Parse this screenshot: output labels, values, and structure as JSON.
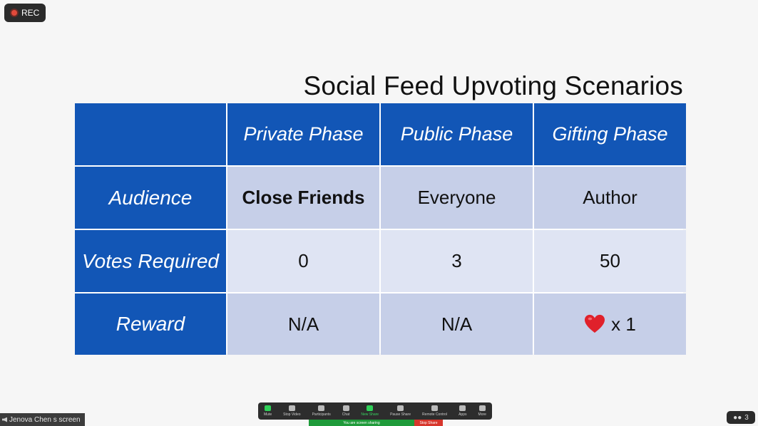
{
  "recording": {
    "label": "REC"
  },
  "slide": {
    "title": "Social Feed Upvoting Scenarios",
    "table": {
      "corner": "",
      "columns": [
        "Private Phase",
        "Public Phase",
        "Gifting Phase"
      ],
      "rows": [
        {
          "label": "Audience",
          "cells": [
            "Close Friends",
            "Everyone",
            "Author"
          ]
        },
        {
          "label": "Votes Required",
          "cells": [
            "0",
            "3",
            "50"
          ]
        },
        {
          "label": "Reward",
          "cells": [
            "N/A",
            "N/A",
            "x 1"
          ]
        }
      ],
      "reward_icon": "heart-emoji-icon",
      "colors": {
        "header_blue": "#1256b6",
        "cell_dark": "#c6cfe8",
        "cell_light": "#dfe4f3"
      }
    }
  },
  "screen_share_label": "Jenova Chen s screen",
  "participants": {
    "count": "3"
  },
  "toolbar": {
    "items": [
      {
        "label": "Mute",
        "icon": "microphone-icon"
      },
      {
        "label": "Stop Video",
        "icon": "video-camera-icon"
      },
      {
        "label": "Participants",
        "icon": "people-icon"
      },
      {
        "label": "Chat",
        "icon": "chat-icon"
      },
      {
        "label": "New Share",
        "icon": "share-screen-icon"
      },
      {
        "label": "Pause Share",
        "icon": "pause-icon"
      },
      {
        "label": "Remote Control",
        "icon": "remote-control-icon"
      },
      {
        "label": "Apps",
        "icon": "apps-icon"
      },
      {
        "label": "More",
        "icon": "more-icon"
      }
    ],
    "sharing_status": "You are screen sharing",
    "stop_share_label": "Stop Share"
  }
}
